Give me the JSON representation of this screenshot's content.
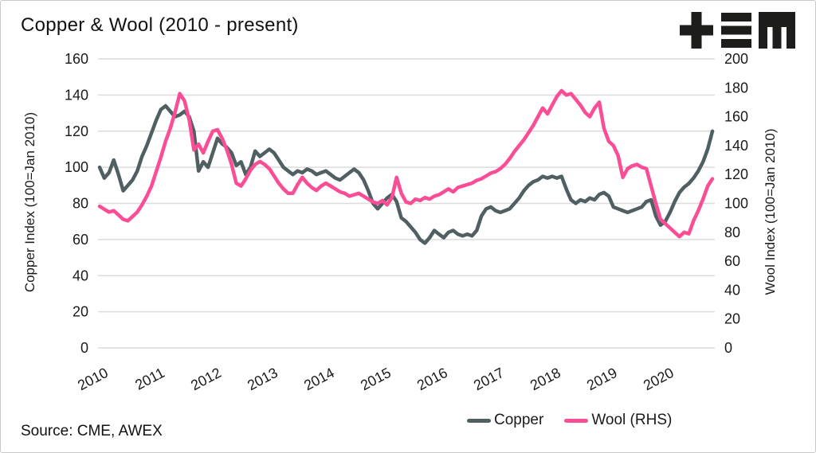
{
  "header": {
    "title": "Copper & Wool (2010 - present)",
    "logo": {
      "glyphs": [
        "plus",
        "triple-bar",
        "m-mark"
      ],
      "color": "#1d1d1b"
    }
  },
  "footer": {
    "source": "Source: CME, AWEX"
  },
  "colors": {
    "copper_line": "#4f5f62",
    "wool_line": "#fa4d96",
    "gridline": "#dcdcdc",
    "text": "#1a1a1a",
    "card_border": "#c9c9c9"
  },
  "chart_data": {
    "type": "line",
    "title": "Copper & Wool (2010 - present)",
    "frequency": "monthly, Jan 2010 to present",
    "grid": "horizontal only",
    "legend_position": "bottom-right",
    "x_axis": {
      "tick_labels": [
        "2010",
        "2011",
        "2012",
        "2013",
        "2014",
        "2015",
        "2016",
        "2017",
        "2018",
        "2019",
        "2020"
      ],
      "ticks_every_n_points": 12,
      "label_rotation_deg": -28
    },
    "left_axis": {
      "label": "Copper Index (100=Jan 2010)",
      "range": [
        0,
        160
      ],
      "tick_labels": [
        "0",
        "20",
        "40",
        "60",
        "80",
        "100",
        "120",
        "140",
        "160"
      ]
    },
    "right_axis": {
      "label": "Wool Index (100=Jan 2010)",
      "range": [
        0,
        200
      ],
      "tick_labels": [
        "0",
        "20",
        "40",
        "60",
        "80",
        "100",
        "120",
        "140",
        "160",
        "180",
        "200"
      ]
    },
    "series": [
      {
        "name": "Copper",
        "axis": "left",
        "color": "#4f5f62",
        "values": [
          100,
          94,
          97,
          104,
          96,
          87,
          90,
          93,
          98,
          106,
          112,
          119,
          126,
          132,
          134,
          131,
          128,
          129,
          131,
          128,
          120,
          98,
          103,
          100,
          108,
          116,
          113,
          111,
          108,
          101,
          103,
          96,
          100,
          109,
          106,
          108,
          110,
          108,
          104,
          100,
          98,
          96,
          98,
          97,
          99,
          98,
          96,
          97,
          98,
          96,
          94,
          93,
          95,
          97,
          99,
          97,
          93,
          87,
          80,
          77,
          80,
          83,
          85,
          81,
          72,
          70,
          67,
          64,
          60,
          58,
          61,
          65,
          63,
          61,
          64,
          65,
          63,
          62,
          63,
          62,
          65,
          73,
          77,
          78,
          76,
          75,
          76,
          77,
          80,
          83,
          87,
          90,
          92,
          93,
          95,
          94,
          95,
          94,
          95,
          88,
          82,
          80,
          82,
          81,
          83,
          82,
          85,
          86,
          84,
          78,
          77,
          76,
          75,
          76,
          77,
          78,
          81,
          82,
          73,
          68,
          70,
          75,
          81,
          86,
          89,
          91,
          94,
          98,
          103,
          110,
          120
        ]
      },
      {
        "name": "Wool (RHS)",
        "axis": "right",
        "color": "#fa4d96",
        "values": [
          98,
          96,
          94,
          95,
          92,
          89,
          88,
          91,
          94,
          99,
          105,
          112,
          122,
          132,
          143,
          152,
          163,
          176,
          171,
          158,
          137,
          141,
          135,
          143,
          150,
          151,
          145,
          137,
          127,
          114,
          112,
          117,
          123,
          127,
          129,
          127,
          124,
          119,
          114,
          110,
          107,
          107,
          113,
          118,
          114,
          111,
          109,
          112,
          114,
          112,
          110,
          108,
          107,
          105,
          106,
          107,
          105,
          103,
          101,
          100,
          102,
          99,
          104,
          118,
          107,
          101,
          100,
          103,
          102,
          104,
          103,
          105,
          106,
          108,
          110,
          108,
          111,
          112,
          113,
          114,
          116,
          117,
          119,
          121,
          122,
          124,
          127,
          131,
          136,
          140,
          144,
          149,
          154,
          160,
          166,
          162,
          168,
          174,
          178,
          175,
          176,
          172,
          168,
          163,
          160,
          166,
          170,
          152,
          143,
          140,
          133,
          118,
          124,
          126,
          127,
          125,
          124,
          112,
          100,
          89,
          86,
          83,
          80,
          77,
          80,
          79,
          88,
          95,
          103,
          112,
          117
        ]
      }
    ]
  }
}
